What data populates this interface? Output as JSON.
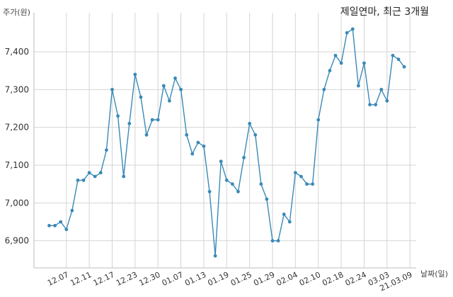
{
  "chart_data": {
    "type": "line",
    "title": "제일연마, 최근 3개월",
    "ylabel": "주가(원)",
    "xlabel": "날짜(일)",
    "ylim": [
      6830,
      7500
    ],
    "yticks": [
      6900,
      7000,
      7100,
      7200,
      7300,
      7400
    ],
    "ytick_labels": [
      "6,900",
      "7,000",
      "7,100",
      "7,200",
      "7,300",
      "7,400"
    ],
    "xtick_labels": [
      "12.07",
      "12.11",
      "12.17",
      "12.23",
      "12.30",
      "01.07",
      "01.13",
      "01.19",
      "01.25",
      "01.29",
      "02.04",
      "02.10",
      "02.18",
      "02.24",
      "03.03",
      "21.03.09"
    ],
    "xtick_indices": [
      3,
      7,
      11,
      15,
      19,
      23,
      27,
      31,
      35,
      39,
      43,
      47,
      51,
      55,
      59,
      63
    ],
    "grid": true,
    "color": "#3a89b7",
    "series": [
      {
        "values": [
          6940,
          6940,
          6950,
          6930,
          6980,
          7060,
          7060,
          7080,
          7070,
          7080,
          7140,
          7300,
          7230,
          7070,
          7210,
          7340,
          7280,
          7180,
          7220,
          7220,
          7310,
          7270,
          7330,
          7300,
          7180,
          7130,
          7160,
          7150,
          7030,
          6860,
          7110,
          7060,
          7050,
          7030,
          7120,
          7210,
          7180,
          7050,
          7010,
          6900,
          6900,
          6970,
          6950,
          7080,
          7070,
          7050,
          7050,
          7220,
          7300,
          7350,
          7390,
          7370,
          7450,
          7460,
          7310,
          7370,
          7260,
          7260,
          7300,
          7270,
          7390,
          7380,
          7360
        ]
      }
    ]
  }
}
